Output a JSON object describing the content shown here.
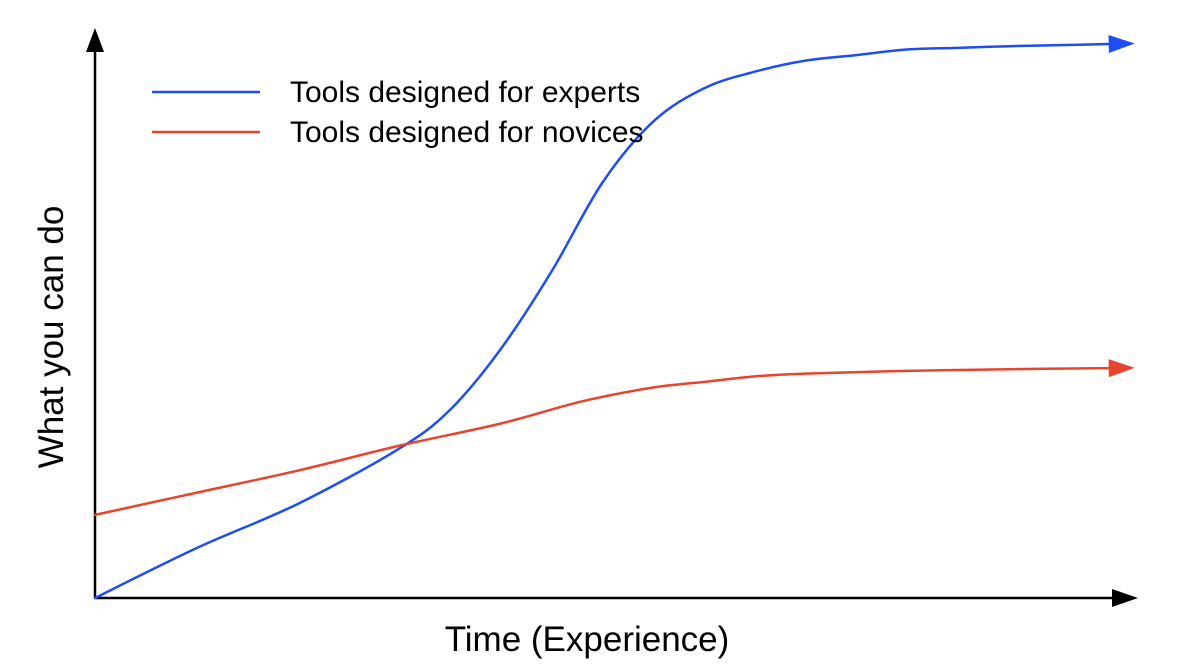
{
  "chart_data": {
    "type": "line",
    "title": "",
    "xlabel": "Time (Experience)",
    "ylabel": "What you can do",
    "xlim": [
      0,
      100
    ],
    "ylim": [
      0,
      100
    ],
    "grid": false,
    "ticks": false,
    "legend_position": "top-left",
    "series": [
      {
        "name": "Tools designed for experts",
        "color": "#1f4df5",
        "x": [
          0,
          10,
          20,
          30,
          35,
          40,
          45,
          50,
          55,
          60,
          65,
          70,
          75,
          80,
          85,
          90,
          95,
          100
        ],
        "y": [
          0,
          9,
          17,
          27,
          34,
          45,
          59,
          75,
          86,
          92,
          95,
          97,
          98,
          99,
          99.3,
          99.6,
          99.8,
          100
        ]
      },
      {
        "name": "Tools designed for novices",
        "color": "#e8432c",
        "x": [
          0,
          10,
          20,
          30,
          40,
          48,
          55,
          60,
          65,
          70,
          80,
          90,
          100
        ],
        "y": [
          15,
          19,
          23,
          27.5,
          31.5,
          35.5,
          38,
          39,
          40,
          40.5,
          41,
          41.3,
          41.5
        ]
      }
    ]
  }
}
